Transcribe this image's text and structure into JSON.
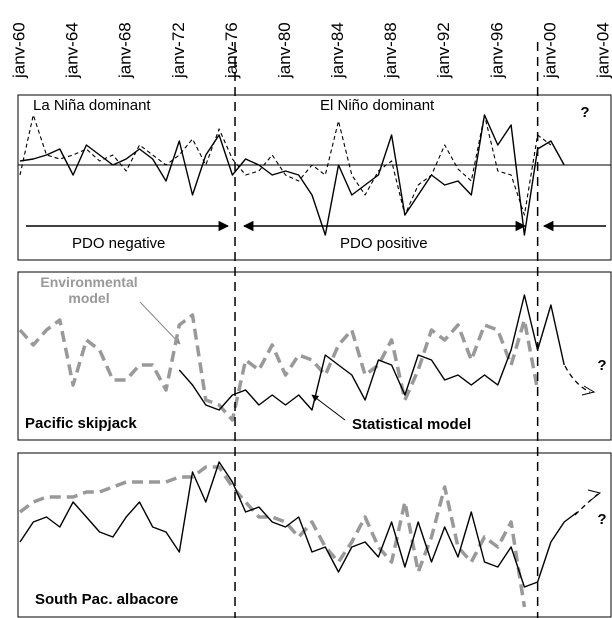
{
  "chart_data": [
    {
      "type": "line",
      "x": [
        1960,
        1961,
        1962,
        1963,
        1964,
        1965,
        1966,
        1967,
        1968,
        1969,
        1970,
        1971,
        1972,
        1973,
        1974,
        1975,
        1976,
        1977,
        1978,
        1979,
        1980,
        1981,
        1982,
        1983,
        1984,
        1985,
        1986,
        1987,
        1988,
        1989,
        1990,
        1991,
        1992,
        1993,
        1994,
        1995,
        1996,
        1997,
        1998,
        1999,
        2000,
        2001,
        2002
      ],
      "xlim": [
        1960,
        2004
      ],
      "xticks": [
        {
          "value": 1960,
          "label": "janv-60"
        },
        {
          "value": 1964,
          "label": "janv-64"
        },
        {
          "value": 1968,
          "label": "janv-68"
        },
        {
          "value": 1972,
          "label": "janv-72"
        },
        {
          "value": 1976,
          "label": "janv-76"
        },
        {
          "value": 1980,
          "label": "janv-80"
        },
        {
          "value": 1984,
          "label": "janv-84"
        },
        {
          "value": 1988,
          "label": "janv-88"
        },
        {
          "value": 1992,
          "label": "janv-92"
        },
        {
          "value": 1996,
          "label": "janv-96"
        },
        {
          "value": 2000,
          "label": "janv-00"
        },
        {
          "value": 2004,
          "label": "janv-04"
        }
      ],
      "ylim": [
        -4.75,
        3.5
      ],
      "regime_shifts": [
        1976.2,
        1999
      ],
      "annotations": [
        "La Niña dominant",
        "El Niño dominant",
        "?",
        "PDO negative",
        "PDO positive"
      ],
      "series": [
        {
          "color": "#000000",
          "dashed": false,
          "values": [
            0.2,
            0.3,
            0.5,
            0.8,
            -0.5,
            1,
            0.5,
            0,
            0.3,
            0.8,
            0.3,
            -0.8,
            1.2,
            -1.5,
            0.5,
            1.5,
            -0.5,
            0.3,
            0,
            -0.5,
            -0.3,
            -0.5,
            -1.5,
            -3.5,
            0,
            -1.5,
            -1,
            -0.5,
            1.5,
            -2.5,
            -1.5,
            -0.5,
            -1,
            -0.8,
            -1.5,
            2.5,
            1,
            2,
            -3.5,
            0.8,
            1.2,
            0,
            null
          ]
        },
        {
          "color": "#000000",
          "dashed": true,
          "values": [
            -0.5,
            2.5,
            0.5,
            0.3,
            0.5,
            0.8,
            0.2,
            0.5,
            -0.3,
            1,
            0.5,
            0,
            0.5,
            1.3,
            0,
            1.8,
            0.3,
            -0.5,
            -0.3,
            0.5,
            -0.5,
            -0.8,
            0,
            -0.5,
            2.2,
            -0.5,
            -1.5,
            -0.3,
            0.2,
            -2.5,
            -1,
            -0.5,
            1,
            -0.2,
            -0.8,
            2.5,
            -0.3,
            -0.5,
            -2.5,
            1.5,
            1,
            null,
            null
          ]
        }
      ]
    },
    {
      "type": "line",
      "title": "Pacific skipjack",
      "x": [
        1960,
        1961,
        1962,
        1963,
        1964,
        1965,
        1966,
        1967,
        1968,
        1969,
        1970,
        1971,
        1972,
        1973,
        1974,
        1975,
        1976,
        1977,
        1978,
        1979,
        1980,
        1981,
        1982,
        1983,
        1984,
        1985,
        1986,
        1987,
        1988,
        1989,
        1990,
        1991,
        1992,
        1993,
        1994,
        1995,
        1996,
        1997,
        1998,
        1999,
        2000,
        2001,
        2002
      ],
      "xlim": [
        1960,
        2004
      ],
      "ylim": [
        0,
        8.4
      ],
      "annotations": [
        "?"
      ],
      "series": [
        {
          "name": "Environmental model",
          "color": "#999999",
          "dashed": true,
          "values": [
            5.5,
            4.75,
            5.5,
            6,
            2.75,
            5,
            4.5,
            3,
            3,
            3.75,
            3.75,
            2.5,
            5.75,
            6.25,
            2,
            1.75,
            1,
            4,
            3.5,
            4.75,
            3.25,
            4.25,
            4,
            3.25,
            4.75,
            5.5,
            3.25,
            3.75,
            5,
            2,
            3.5,
            5.5,
            5,
            5.75,
            4,
            5.75,
            5.5,
            3.75,
            6,
            2.5,
            null,
            null,
            null
          ]
        },
        {
          "name": "Statistical model",
          "color": "#000000",
          "dashed": false,
          "values": [
            null,
            null,
            null,
            null,
            null,
            null,
            null,
            null,
            null,
            null,
            null,
            null,
            3.5,
            2.75,
            1.75,
            1.5,
            2.25,
            2.5,
            1.75,
            2.25,
            1.75,
            2.25,
            1.5,
            4.25,
            3.75,
            3.25,
            2,
            4,
            3.75,
            2.25,
            4.25,
            4,
            3,
            3.25,
            2.75,
            3.25,
            2.75,
            4.5,
            7.25,
            4.5,
            6.75,
            3.75,
            null
          ]
        }
      ]
    },
    {
      "type": "line",
      "title": "South Pac. albacore",
      "x": [
        1960,
        1961,
        1962,
        1963,
        1964,
        1965,
        1966,
        1967,
        1968,
        1969,
        1970,
        1971,
        1972,
        1973,
        1974,
        1975,
        1976,
        1977,
        1978,
        1979,
        1980,
        1981,
        1982,
        1983,
        1984,
        1985,
        1986,
        1987,
        1988,
        1989,
        1990,
        1991,
        1992,
        1993,
        1994,
        1995,
        1996,
        1997,
        1998,
        1999,
        2000,
        2001,
        2002
      ],
      "xlim": [
        1960,
        2004
      ],
      "ylim": [
        -0.25,
        7.95
      ],
      "annotations": [
        "?"
      ],
      "series": [
        {
          "color": "#999999",
          "dashed": true,
          "values": [
            5,
            5.5,
            5.75,
            5.75,
            5.75,
            6,
            6,
            6.25,
            6.5,
            6.5,
            6.5,
            6.5,
            6.75,
            6.75,
            7.25,
            7.25,
            6.25,
            5.5,
            4.75,
            4.75,
            4.5,
            3.75,
            4.5,
            3.25,
            2.5,
            3.5,
            4.75,
            3.25,
            2.5,
            5.5,
            2,
            3.75,
            6.25,
            3.25,
            2.5,
            3.75,
            3.25,
            4.5,
            0.25,
            null,
            null,
            null,
            null
          ]
        },
        {
          "color": "#000000",
          "dashed": false,
          "values": [
            3.5,
            4.5,
            4.75,
            4.25,
            5.5,
            4.75,
            4,
            3.75,
            4.75,
            5.5,
            4.25,
            4,
            3,
            7,
            5.5,
            7.5,
            6.5,
            5,
            5.25,
            4.5,
            4.25,
            4.75,
            3,
            3.25,
            2,
            3.25,
            3.5,
            2.75,
            4.5,
            2.25,
            4.5,
            2.5,
            4.25,
            2.75,
            5,
            2.5,
            2.25,
            3.25,
            1.25,
            1.5,
            3.5,
            4.5,
            5
          ]
        }
      ]
    }
  ]
}
